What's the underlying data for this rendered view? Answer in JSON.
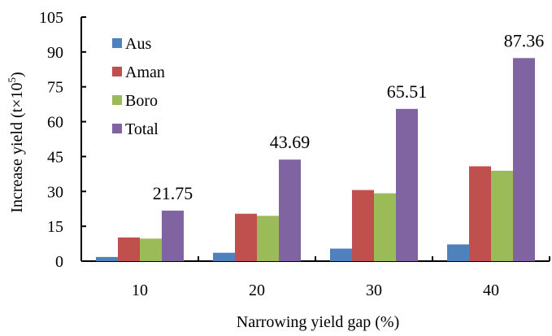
{
  "chart_data": {
    "type": "bar",
    "xlabel": "Narrowing yield gap (%)",
    "ylabel": "Increase yield (t×10",
    "ylabel_sup": "5",
    "ylabel_end": ")",
    "categories": [
      "10",
      "20",
      "30",
      "40"
    ],
    "ylim": [
      0,
      105
    ],
    "yticks": [
      0,
      15,
      30,
      45,
      60,
      75,
      90,
      105
    ],
    "series": [
      {
        "name": "Aus",
        "color": "#4f81bd",
        "values": [
          1.8,
          3.6,
          5.4,
          7.2
        ]
      },
      {
        "name": "Aman",
        "color": "#c0504d",
        "values": [
          10.2,
          20.4,
          30.6,
          40.8
        ]
      },
      {
        "name": "Boro",
        "color": "#9bbb59",
        "values": [
          9.7,
          19.5,
          29.2,
          38.9
        ]
      },
      {
        "name": "Total",
        "color": "#8064a2",
        "values": [
          21.75,
          43.69,
          65.51,
          87.36
        ]
      }
    ],
    "data_labels": {
      "series": "Total",
      "texts": [
        "21.75",
        "43.69",
        "65.51",
        "87.36"
      ]
    },
    "legend": "top-left",
    "grid": false
  }
}
